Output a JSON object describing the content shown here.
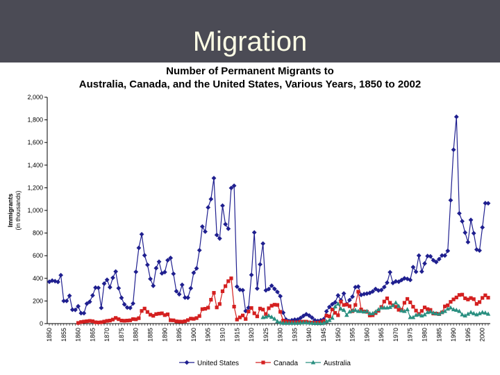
{
  "slide": {
    "title": "Migration"
  },
  "chart_data": {
    "type": "line",
    "title_line1": "Number of Permanent Migrants to",
    "title_line2": "Australia, Canada, and the United States, Various Years, 1850 to 2002",
    "ylabel": "Immigrants",
    "ylabel_sub": "(in thousands)",
    "xlabel": "",
    "ylim": [
      0,
      2000
    ],
    "xlim": [
      1850,
      2002
    ],
    "yticks": [
      "0",
      "200",
      "400",
      "600",
      "800",
      "1,000",
      "1,200",
      "1,400",
      "1,600",
      "1,800",
      "2,000"
    ],
    "xticks": [
      "1850",
      "1855",
      "1860",
      "1865",
      "1870",
      "1875",
      "1880",
      "1885",
      "1890",
      "1895",
      "1900",
      "1905",
      "1910",
      "1915",
      "1920",
      "1925",
      "1930",
      "1935",
      "1940",
      "1945",
      "1950",
      "1955",
      "1960",
      "1965",
      "1970",
      "1975",
      "1980",
      "1985",
      "1990",
      "1995",
      "2000"
    ],
    "legend_position": "bottom",
    "series": [
      {
        "name": "United States",
        "color": "#1f1f8f",
        "marker": "diamond",
        "x": [
          1850,
          1851,
          1852,
          1853,
          1854,
          1855,
          1856,
          1857,
          1858,
          1859,
          1860,
          1861,
          1862,
          1863,
          1864,
          1865,
          1866,
          1867,
          1868,
          1869,
          1870,
          1871,
          1872,
          1873,
          1874,
          1875,
          1876,
          1877,
          1878,
          1879,
          1880,
          1881,
          1882,
          1883,
          1884,
          1885,
          1886,
          1887,
          1888,
          1889,
          1890,
          1891,
          1892,
          1893,
          1894,
          1895,
          1896,
          1897,
          1898,
          1899,
          1900,
          1901,
          1902,
          1903,
          1904,
          1905,
          1906,
          1907,
          1908,
          1909,
          1910,
          1911,
          1912,
          1913,
          1914,
          1915,
          1916,
          1917,
          1918,
          1919,
          1920,
          1921,
          1922,
          1923,
          1924,
          1925,
          1926,
          1927,
          1928,
          1929,
          1930,
          1931,
          1932,
          1933,
          1934,
          1935,
          1936,
          1937,
          1938,
          1939,
          1940,
          1941,
          1942,
          1943,
          1944,
          1945,
          1946,
          1947,
          1948,
          1949,
          1950,
          1951,
          1952,
          1953,
          1954,
          1955,
          1956,
          1957,
          1958,
          1959,
          1960,
          1961,
          1962,
          1963,
          1964,
          1965,
          1966,
          1967,
          1968,
          1969,
          1970,
          1971,
          1972,
          1973,
          1974,
          1975,
          1976,
          1977,
          1978,
          1979,
          1980,
          1981,
          1982,
          1983,
          1984,
          1985,
          1986,
          1987,
          1988,
          1989,
          1990,
          1991,
          1992,
          1993,
          1994,
          1995,
          1996,
          1997,
          1998,
          1999,
          2000,
          2001,
          2002
        ],
        "values": [
          370,
          380,
          375,
          368,
          428,
          200,
          200,
          246,
          123,
          121,
          153,
          92,
          92,
          176,
          193,
          249,
          318,
          316,
          139,
          353,
          387,
          321,
          405,
          460,
          313,
          228,
          170,
          142,
          138,
          178,
          457,
          669,
          789,
          603,
          519,
          395,
          334,
          490,
          547,
          444,
          455,
          560,
          580,
          440,
          286,
          259,
          343,
          230,
          229,
          312,
          449,
          488,
          648,
          857,
          813,
          1026,
          1100,
          1285,
          783,
          752,
          1042,
          878,
          838,
          1198,
          1218,
          327,
          299,
          295,
          111,
          141,
          430,
          805,
          310,
          523,
          707,
          294,
          305,
          335,
          307,
          280,
          242,
          97,
          35,
          23,
          30,
          35,
          36,
          50,
          68,
          83,
          71,
          52,
          29,
          24,
          29,
          38,
          108,
          147,
          171,
          188,
          249,
          206,
          266,
          170,
          208,
          238,
          322,
          327,
          253,
          261,
          265,
          271,
          284,
          306,
          292,
          297,
          323,
          362,
          454,
          359,
          373,
          370,
          385,
          400,
          395,
          386,
          499,
          458,
          601,
          460,
          531,
          597,
          594,
          560,
          544,
          570,
          602,
          601,
          643,
          1090,
          1536,
          1827,
          974,
          904,
          804,
          720,
          916,
          798,
          654,
          646,
          850,
          1064,
          1063
        ]
      },
      {
        "name": "Canada",
        "color": "#d42020",
        "marker": "square",
        "x": [
          1860,
          1861,
          1862,
          1863,
          1864,
          1865,
          1866,
          1867,
          1868,
          1869,
          1870,
          1871,
          1872,
          1873,
          1874,
          1875,
          1876,
          1877,
          1878,
          1879,
          1880,
          1881,
          1882,
          1883,
          1884,
          1885,
          1886,
          1887,
          1888,
          1889,
          1890,
          1891,
          1892,
          1893,
          1894,
          1895,
          1896,
          1897,
          1898,
          1899,
          1900,
          1901,
          1902,
          1903,
          1904,
          1905,
          1906,
          1907,
          1908,
          1909,
          1910,
          1911,
          1912,
          1913,
          1914,
          1915,
          1916,
          1917,
          1918,
          1919,
          1920,
          1921,
          1922,
          1923,
          1924,
          1925,
          1926,
          1927,
          1928,
          1929,
          1930,
          1931,
          1932,
          1933,
          1934,
          1935,
          1936,
          1937,
          1938,
          1939,
          1940,
          1941,
          1942,
          1943,
          1944,
          1945,
          1946,
          1947,
          1948,
          1949,
          1950,
          1951,
          1952,
          1953,
          1954,
          1955,
          1956,
          1957,
          1958,
          1959,
          1960,
          1961,
          1962,
          1963,
          1964,
          1965,
          1966,
          1967,
          1968,
          1969,
          1970,
          1971,
          1972,
          1973,
          1974,
          1975,
          1976,
          1977,
          1978,
          1979,
          1980,
          1981,
          1982,
          1983,
          1984,
          1985,
          1986,
          1987,
          1988,
          1989,
          1990,
          1991,
          1992,
          1993,
          1994,
          1995,
          1996,
          1997,
          1998,
          1999,
          2000,
          2001,
          2002
        ],
        "values": [
          6,
          14,
          18,
          21,
          24,
          21,
          12,
          10,
          12,
          18,
          24,
          27,
          36,
          50,
          39,
          27,
          25,
          27,
          29,
          40,
          38,
          48,
          112,
          133,
          103,
          79,
          69,
          84,
          88,
          91,
          75,
          82,
          30,
          29,
          20,
          18,
          17,
          21,
          31,
          44,
          42,
          49,
          67,
          128,
          131,
          141,
          211,
          272,
          143,
          173,
          286,
          331,
          375,
          400,
          150,
          36,
          55,
          72,
          41,
          107,
          138,
          91,
          64,
          133,
          124,
          84,
          136,
          158,
          167,
          165,
          104,
          27,
          20,
          14,
          12,
          11,
          11,
          15,
          17,
          17,
          11,
          9,
          8,
          8,
          12,
          23,
          71,
          64,
          125,
          95,
          74,
          194,
          165,
          169,
          154,
          110,
          165,
          282,
          125,
          107,
          104,
          72,
          74,
          93,
          113,
          147,
          195,
          223,
          184,
          162,
          148,
          122,
          122,
          184,
          218,
          188,
          149,
          115,
          86,
          112,
          143,
          128,
          121,
          89,
          88,
          84,
          99,
          152,
          162,
          192,
          214,
          231,
          253,
          256,
          224,
          213,
          226,
          216,
          174,
          190,
          227,
          250,
          229
        ]
      },
      {
        "name": "Australia",
        "color": "#2a8f80",
        "marker": "triangle",
        "x": [
          1924,
          1925,
          1926,
          1927,
          1928,
          1929,
          1930,
          1931,
          1932,
          1933,
          1934,
          1935,
          1936,
          1937,
          1938,
          1939,
          1940,
          1941,
          1942,
          1943,
          1944,
          1945,
          1946,
          1947,
          1948,
          1949,
          1950,
          1951,
          1952,
          1953,
          1954,
          1955,
          1956,
          1957,
          1958,
          1959,
          1960,
          1961,
          1962,
          1963,
          1964,
          1965,
          1966,
          1967,
          1968,
          1969,
          1970,
          1971,
          1972,
          1973,
          1974,
          1975,
          1976,
          1977,
          1978,
          1979,
          1980,
          1981,
          1982,
          1983,
          1984,
          1985,
          1986,
          1987,
          1988,
          1989,
          1990,
          1991,
          1992,
          1993,
          1994,
          1995,
          1996,
          1997,
          1998,
          1999,
          2000,
          2001,
          2002
        ],
        "values": [
          55,
          60,
          70,
          58,
          42,
          20,
          10,
          5,
          5,
          5,
          5,
          5,
          5,
          8,
          10,
          10,
          8,
          5,
          3,
          2,
          2,
          5,
          20,
          30,
          50,
          150,
          175,
          130,
          120,
          75,
          105,
          115,
          120,
          110,
          110,
          105,
          110,
          90,
          90,
          105,
          125,
          140,
          140,
          140,
          145,
          160,
          185,
          155,
          115,
          110,
          125,
          55,
          55,
          75,
          80,
          70,
          80,
          100,
          105,
          95,
          90,
          85,
          100,
          110,
          130,
          140,
          125,
          120,
          110,
          80,
          70,
          85,
          100,
          90,
          80,
          90,
          100,
          95,
          85
        ]
      }
    ]
  }
}
